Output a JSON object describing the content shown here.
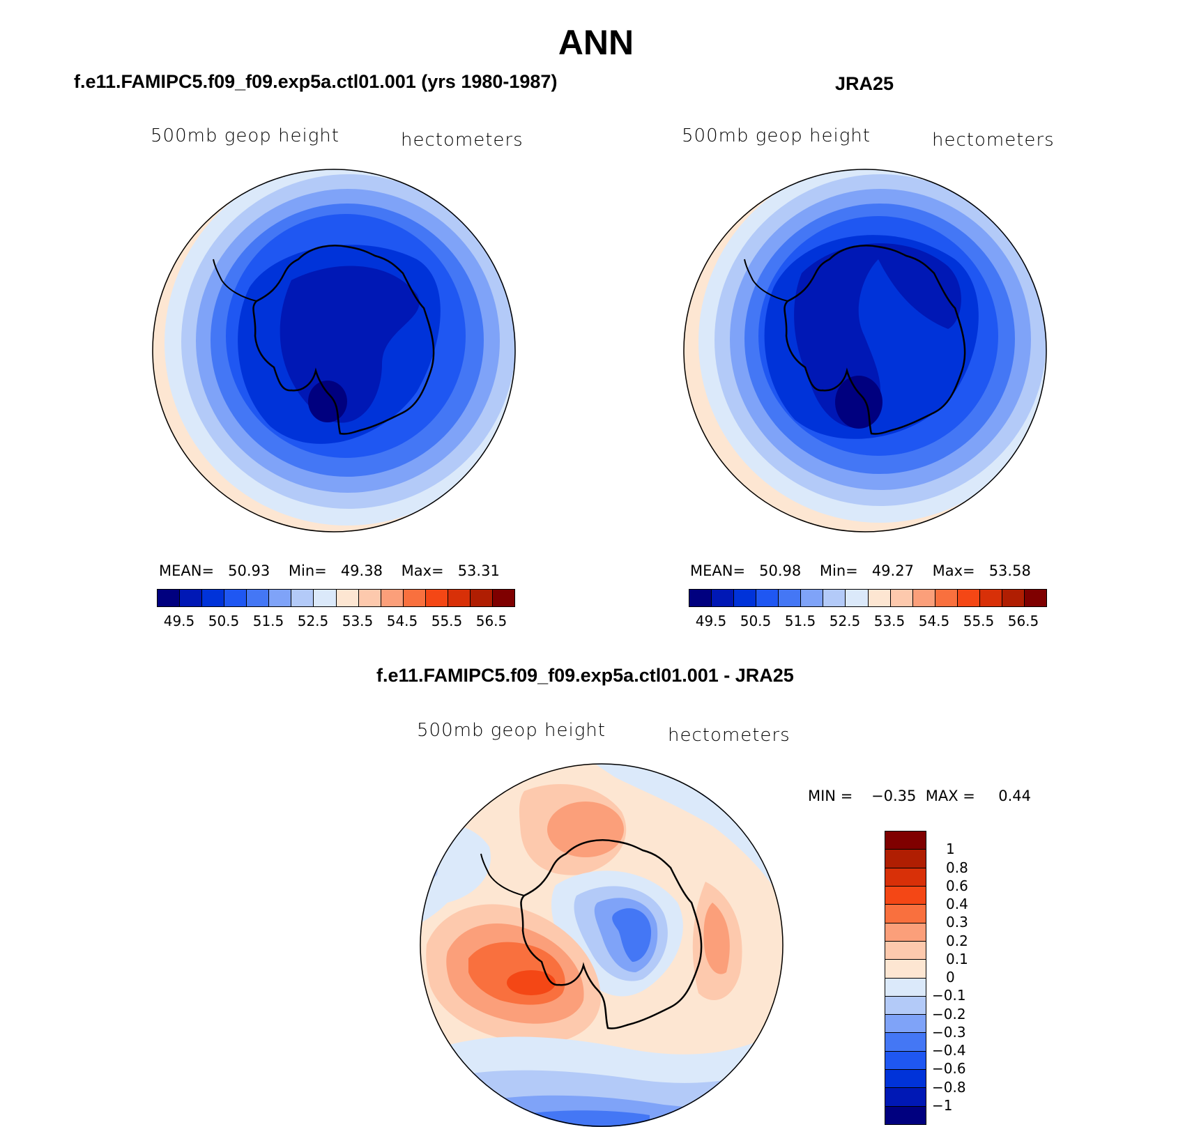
{
  "figure": {
    "title": "ANN"
  },
  "panels": [
    {
      "title": "f.e11.FAMIPC5.f09_f09.exp5a.ctl01.001 (yrs 1980-1987)",
      "variable": "500mb geop height",
      "units": "hectometers",
      "mean_label": "MEAN=",
      "mean": "50.93",
      "min_label": "Min=",
      "min": "49.38",
      "max_label": "Max=",
      "max": "53.31"
    },
    {
      "title": "JRA25",
      "variable": "500mb geop height",
      "units": "hectometers",
      "mean_label": "MEAN=",
      "mean": "50.98",
      "min_label": "Min=",
      "min": "49.27",
      "max_label": "Max=",
      "max": "53.58"
    }
  ],
  "diff_panel": {
    "title": "f.e11.FAMIPC5.f09_f09.exp5a.ctl01.001 - JRA25",
    "variable": "500mb geop height",
    "units": "hectometers",
    "min_label": "MIN =",
    "min": "−0.35",
    "max_label": "MAX =",
    "max": "0.44"
  },
  "colorbar": {
    "colors": [
      "#00007f",
      "#0018b5",
      "#0033d9",
      "#1f57f2",
      "#4477f5",
      "#7fa3f8",
      "#b3caf8",
      "#dbe9fa",
      "#fde6d2",
      "#fdc9ad",
      "#fb9f7a",
      "#f9703e",
      "#f44715",
      "#d83008",
      "#b01e02",
      "#7f0000"
    ],
    "labels": [
      "49.5",
      "50.5",
      "51.5",
      "52.5",
      "53.5",
      "54.5",
      "55.5",
      "56.5"
    ]
  },
  "diff_colorbar": {
    "colors": [
      "#7f0000",
      "#b01e02",
      "#d83008",
      "#f44715",
      "#f9703e",
      "#fb9f7a",
      "#fdc9ad",
      "#fde6d2",
      "#dbe9fa",
      "#b3caf8",
      "#7fa3f8",
      "#4477f5",
      "#1f57f2",
      "#0033d9",
      "#0018b5",
      "#00007f"
    ],
    "labels": [
      "1",
      "0.8",
      "0.6",
      "0.4",
      "0.3",
      "0.2",
      "0.1",
      "0",
      "−0.1",
      "−0.2",
      "−0.3",
      "−0.4",
      "−0.6",
      "−0.8",
      "−1"
    ]
  }
}
